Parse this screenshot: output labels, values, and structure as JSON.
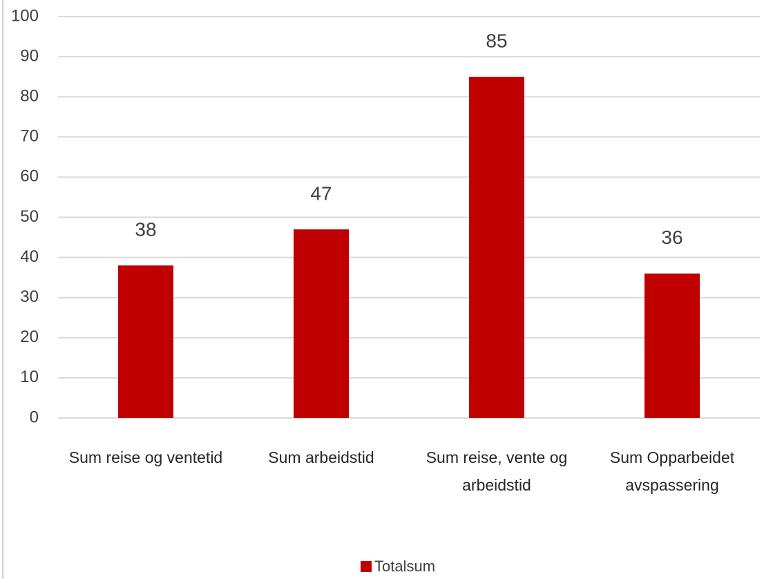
{
  "chart_data": {
    "type": "bar",
    "categories": [
      "Sum reise og ventetid",
      "Sum arbeidstid",
      "Sum reise, vente og arbeidstid",
      "Sum Opparbeidet avspassering"
    ],
    "series": [
      {
        "name": "Totalsum",
        "color": "#c00000",
        "values": [
          38,
          47,
          85,
          36
        ]
      }
    ],
    "ylim": [
      0,
      100
    ],
    "yticks": [
      0,
      10,
      20,
      30,
      40,
      50,
      60,
      70,
      80,
      90,
      100
    ],
    "grid": true,
    "legend": "bottom"
  }
}
